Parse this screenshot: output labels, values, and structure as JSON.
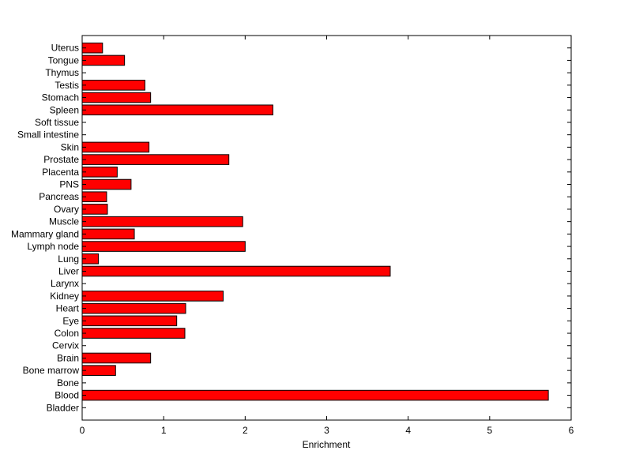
{
  "chart_data": {
    "type": "bar",
    "orientation": "horizontal",
    "xlabel": "Enrichment",
    "ylabel": "",
    "title": "",
    "xlim": [
      0,
      6
    ],
    "xticks": [
      "0",
      "1",
      "2",
      "3",
      "4",
      "5",
      "6"
    ],
    "grid": false,
    "legend": "none",
    "bar_color": "#ff0000",
    "bar_edge_color": "#000000",
    "categories": [
      "Bladder",
      "Blood",
      "Bone",
      "Bone marrow",
      "Brain",
      "Cervix",
      "Colon",
      "Eye",
      "Heart",
      "Kidney",
      "Larynx",
      "Liver",
      "Lung",
      "Lymph node",
      "Mammary gland",
      "Muscle",
      "Ovary",
      "Pancreas",
      "PNS",
      "Placenta",
      "Prostate",
      "Skin",
      "Small intestine",
      "Soft tissue",
      "Spleen",
      "Stomach",
      "Testis",
      "Thymus",
      "Tongue",
      "Uterus"
    ],
    "values": [
      0,
      5.72,
      0,
      0.41,
      0.84,
      0,
      1.26,
      1.16,
      1.27,
      1.73,
      0,
      3.78,
      0.2,
      2.0,
      0.64,
      1.97,
      0.31,
      0.3,
      0.6,
      0.43,
      1.8,
      0.82,
      0,
      0,
      2.34,
      0.84,
      0.77,
      0,
      0.52,
      0.25
    ]
  }
}
